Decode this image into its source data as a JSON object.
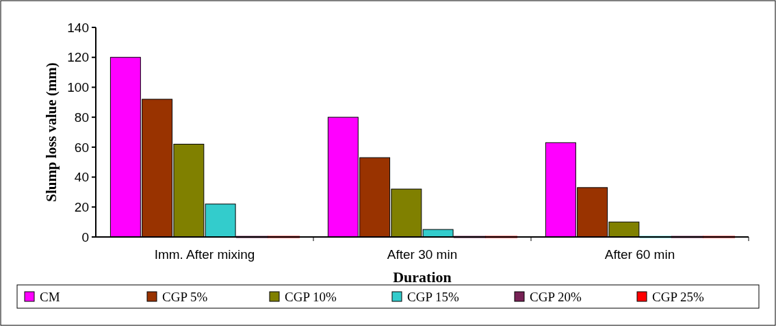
{
  "chart_data": {
    "type": "bar",
    "xlabel": "Duration",
    "ylabel": "Slump loss value (mm)",
    "categories": [
      "Imm. After mixing",
      "After 30 min",
      "After 60 min"
    ],
    "series": [
      {
        "name": "CM",
        "color": "#ff00ff",
        "values": [
          120,
          80,
          63
        ]
      },
      {
        "name": "CGP 5%",
        "color": "#993300",
        "values": [
          92,
          53,
          33
        ]
      },
      {
        "name": "CGP 10%",
        "color": "#808000",
        "values": [
          62,
          32,
          10
        ]
      },
      {
        "name": "CGP 15%",
        "color": "#33cccc",
        "values": [
          22,
          5,
          0
        ]
      },
      {
        "name": "CGP 20%",
        "color": "#772255",
        "values": [
          0,
          0,
          0
        ]
      },
      {
        "name": "CGP 25%",
        "color": "#ff0000",
        "values": [
          0,
          0,
          0
        ]
      }
    ],
    "ylim": [
      0,
      140
    ],
    "yticks": [
      0,
      20,
      40,
      60,
      80,
      100,
      120,
      140
    ],
    "grid": false,
    "legend": "bottom"
  }
}
